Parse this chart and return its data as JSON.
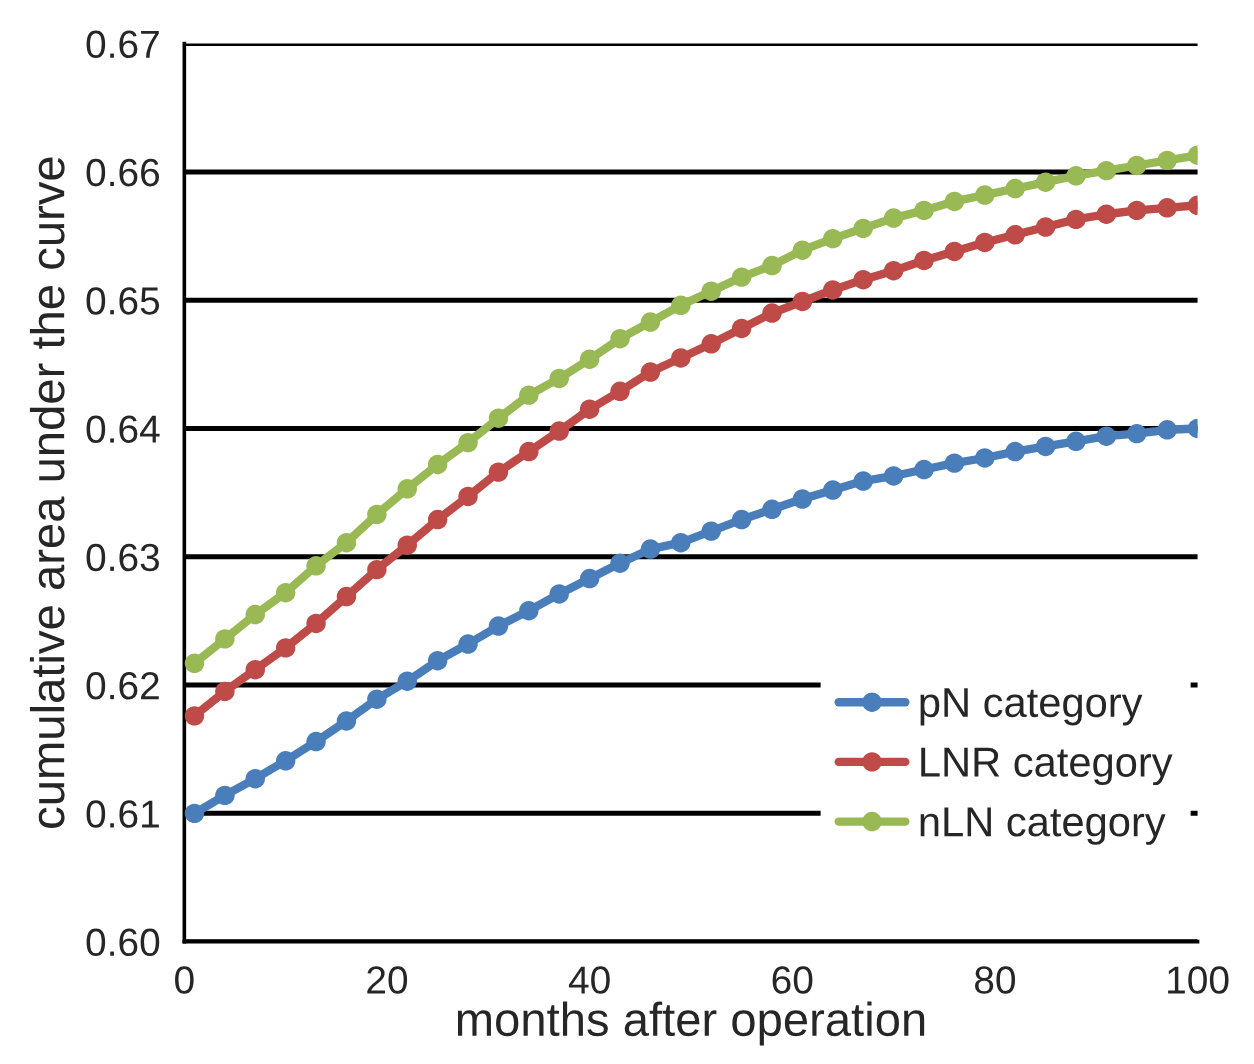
{
  "chart_data": {
    "type": "line",
    "xlabel": "months after operation",
    "ylabel": "cumulative area under the curve",
    "x": [
      1,
      4,
      7,
      10,
      13,
      16,
      19,
      22,
      25,
      28,
      31,
      34,
      37,
      40,
      43,
      46,
      49,
      52,
      55,
      58,
      61,
      64,
      67,
      70,
      73,
      76,
      79,
      82,
      85,
      88,
      91,
      94,
      97,
      100
    ],
    "series": [
      {
        "name": "pN category",
        "color": "#4a7ebb",
        "values": [
          0.61,
          0.6114,
          0.6127,
          0.6141,
          0.6156,
          0.6172,
          0.6189,
          0.6203,
          0.6219,
          0.6232,
          0.6246,
          0.6258,
          0.6271,
          0.6283,
          0.6295,
          0.6306,
          0.6311,
          0.632,
          0.6329,
          0.6337,
          0.6345,
          0.6352,
          0.6359,
          0.6363,
          0.6368,
          0.6373,
          0.6377,
          0.6382,
          0.6386,
          0.639,
          0.6394,
          0.6396,
          0.6399,
          0.64
        ]
      },
      {
        "name": "LNR category",
        "color": "#be4b48",
        "values": [
          0.6176,
          0.6195,
          0.6212,
          0.6229,
          0.6248,
          0.6269,
          0.629,
          0.6309,
          0.6329,
          0.6347,
          0.6366,
          0.6382,
          0.6398,
          0.6415,
          0.6429,
          0.6444,
          0.6455,
          0.6466,
          0.6478,
          0.649,
          0.6499,
          0.6508,
          0.6516,
          0.6523,
          0.6531,
          0.6538,
          0.6545,
          0.6551,
          0.6557,
          0.6563,
          0.6567,
          0.657,
          0.6572,
          0.6574
        ]
      },
      {
        "name": "nLN category",
        "color": "#98b954",
        "values": [
          0.6217,
          0.6236,
          0.6255,
          0.6272,
          0.6293,
          0.6311,
          0.6333,
          0.6353,
          0.6372,
          0.6389,
          0.6408,
          0.6426,
          0.6439,
          0.6454,
          0.647,
          0.6483,
          0.6496,
          0.6507,
          0.6518,
          0.6527,
          0.6539,
          0.6548,
          0.6556,
          0.6564,
          0.657,
          0.6577,
          0.6582,
          0.6587,
          0.6592,
          0.6597,
          0.6601,
          0.6605,
          0.6609,
          0.6613
        ]
      }
    ],
    "xlim": [
      0,
      100
    ],
    "xticks": [
      0,
      20,
      40,
      60,
      80,
      100
    ],
    "ylim": [
      0.6,
      0.67
    ],
    "yticks": [
      {
        "value": 0.6,
        "label": "0.60"
      },
      {
        "value": 0.61,
        "label": "0.61"
      },
      {
        "value": 0.62,
        "label": "0.62"
      },
      {
        "value": 0.63,
        "label": "0.63"
      },
      {
        "value": 0.64,
        "label": "0.64"
      },
      {
        "value": 0.65,
        "label": "0.65"
      },
      {
        "value": 0.66,
        "label": "0.66"
      },
      {
        "value": 0.67,
        "label": "0.67"
      }
    ],
    "grid": "y",
    "legend": "bottom right",
    "marker": "circle",
    "line_style": "solid"
  }
}
